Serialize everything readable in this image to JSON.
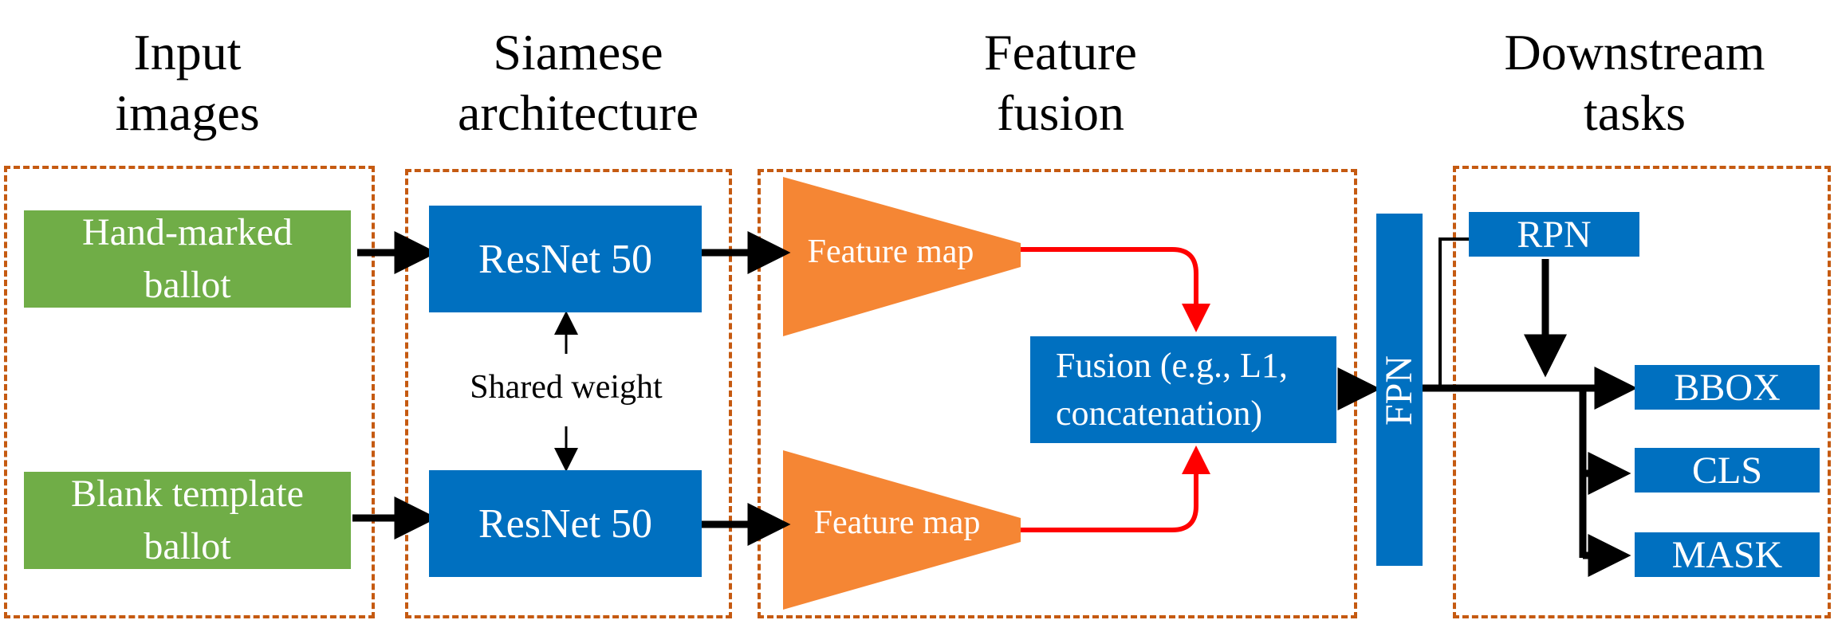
{
  "headings": {
    "input": [
      "Input",
      "images"
    ],
    "siamese": [
      "Siamese",
      "architecture"
    ],
    "fusion": [
      "Feature",
      "fusion"
    ],
    "downstream": [
      "Downstream",
      "tasks"
    ]
  },
  "inputs": {
    "hand_marked": [
      "Hand-marked",
      "ballot"
    ],
    "blank_template": [
      "Blank template",
      "ballot"
    ]
  },
  "backbone": {
    "top": "ResNet 50",
    "bottom": "ResNet 50",
    "shared_weight": "Shared weight"
  },
  "feature_maps": {
    "top": "Feature map",
    "bottom": "Feature map"
  },
  "fusion_box": [
    "Fusion (e.g., L1,",
    "concatenation)"
  ],
  "fpn": "FPN",
  "rpn": "RPN",
  "outputs": {
    "bbox": "BBOX",
    "cls": "CLS",
    "mask": "MASK"
  },
  "colors": {
    "panel_border": "#c55a11",
    "input_box": "#70ad47",
    "network_box": "#0070c0",
    "feature_map": "#f58634",
    "fusion_arrow": "#ff0000",
    "arrow": "#000000"
  }
}
